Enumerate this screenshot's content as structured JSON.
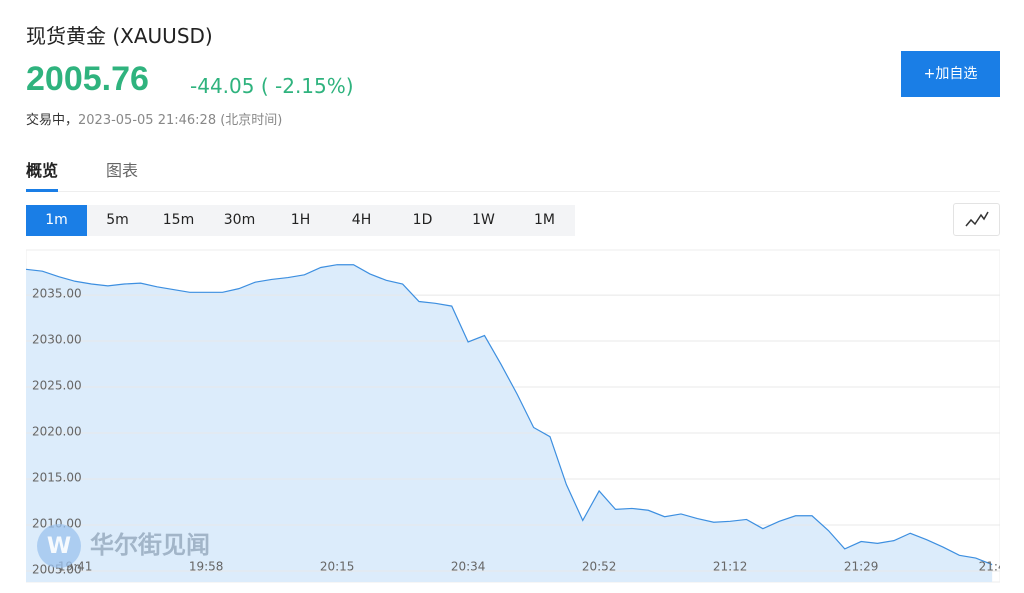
{
  "header": {
    "title": "现货黄金",
    "symbol": "(XAUUSD)",
    "price": "2005.76",
    "change": "-44.05",
    "change_pct": "( -2.15%)",
    "status": "交易中，",
    "timestamp": "2023-05-05 21:46:28",
    "timezone": "(北京时间)"
  },
  "button": "+加自选",
  "tabs": [
    "概览",
    "图表"
  ],
  "periods": [
    "1m",
    "5m",
    "15m",
    "30m",
    "1H",
    "4H",
    "1D",
    "1W",
    "1M"
  ],
  "watermark": "华尔街见闻",
  "chart_data": {
    "type": "area",
    "color": "#3d8fe0",
    "fill": "#dcecfb",
    "grid": true,
    "categories": [
      null,
      null,
      null,
      "19:41",
      null,
      null,
      null,
      null,
      null,
      null,
      null,
      "19:58",
      null,
      null,
      null,
      null,
      null,
      null,
      null,
      "20:15",
      null,
      null,
      null,
      null,
      null,
      null,
      null,
      "20:34",
      null,
      null,
      null,
      null,
      null,
      null,
      null,
      "20:52",
      null,
      null,
      null,
      null,
      null,
      null,
      null,
      "21:12",
      null,
      null,
      null,
      null,
      null,
      null,
      null,
      "21:29",
      null,
      null,
      null,
      null,
      null,
      null,
      null,
      "21:4"
    ],
    "values": [
      2037.8,
      2037.6,
      2037.0,
      2036.5,
      2036.2,
      2036.0,
      2036.2,
      2036.3,
      2035.9,
      2035.6,
      2035.3,
      2035.3,
      2035.3,
      2035.7,
      2036.4,
      2036.7,
      2036.9,
      2037.2,
      2038.0,
      2038.3,
      2038.3,
      2037.3,
      2036.6,
      2036.2,
      2034.3,
      2034.1,
      2033.8,
      2029.9,
      2030.6,
      2027.5,
      2024.2,
      2020.6,
      2019.6,
      2014.4,
      2010.5,
      2013.7,
      2011.7,
      2011.8,
      2011.6,
      2010.9,
      2011.2,
      2010.7,
      2010.3,
      2010.4,
      2010.6,
      2009.6,
      2010.4,
      2011.0,
      2011.0,
      2009.4,
      2007.4,
      2008.2,
      2008.0,
      2008.3,
      2009.1,
      2008.4,
      2007.6,
      2006.7,
      2006.4,
      2005.7
    ],
    "ylim": [
      2003.8,
      2039.9
    ],
    "yticks": [
      {
        "value": 2005,
        "label": "2005.00"
      },
      {
        "value": 2010,
        "label": "2010.00"
      },
      {
        "value": 2015,
        "label": "2015.00"
      },
      {
        "value": 2020,
        "label": "2020.00"
      },
      {
        "value": 2025,
        "label": "2025.00"
      },
      {
        "value": 2030,
        "label": "2030.00"
      },
      {
        "value": 2035,
        "label": "2035.00"
      }
    ]
  }
}
